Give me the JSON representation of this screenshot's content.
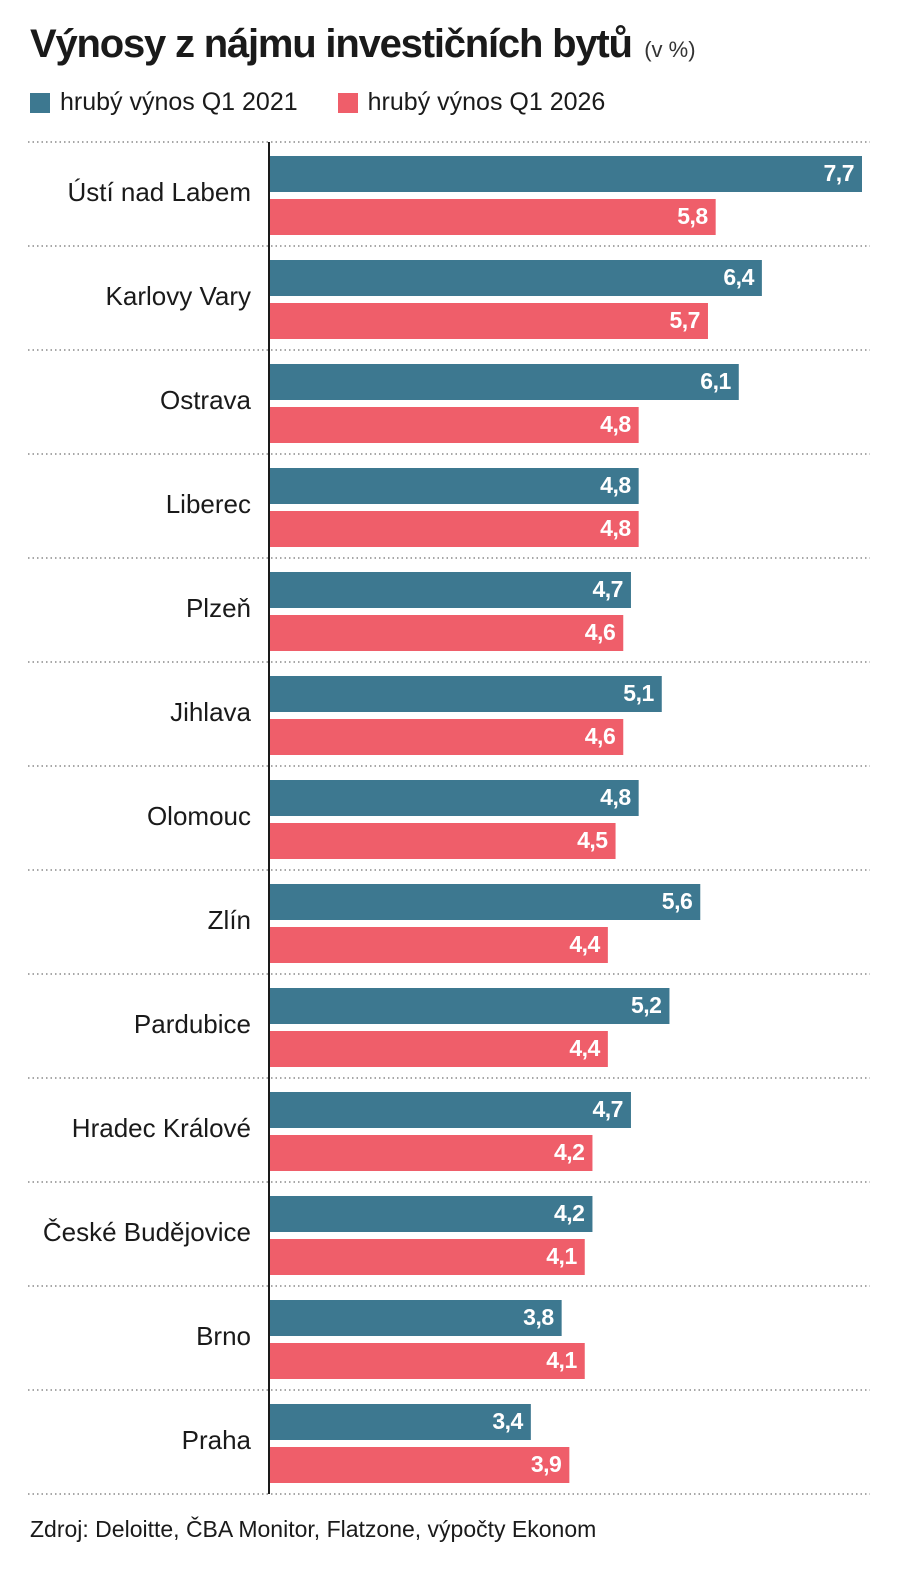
{
  "header": {
    "title": "Výnosy z nájmu investičních bytů",
    "unit": "(v %)"
  },
  "legend": {
    "items": [
      {
        "label": "hrubý výnos Q1 2021",
        "color": "#3d7890"
      },
      {
        "label": "hrubý výnos Q1 2026",
        "color": "#ef5e6a"
      }
    ]
  },
  "chart_data": {
    "type": "bar",
    "orientation": "horizontal",
    "categories": [
      "Ústí nad Labem",
      "Karlovy Vary",
      "Ostrava",
      "Liberec",
      "Plzeň",
      "Jihlava",
      "Olomouc",
      "Zlín",
      "Pardubice",
      "Hradec Králové",
      "České Budějovice",
      "Brno",
      "Praha"
    ],
    "series": [
      {
        "name": "hrubý výnos Q1 2021",
        "color": "#3d7890",
        "values": [
          7.7,
          6.4,
          6.1,
          4.8,
          4.7,
          5.1,
          4.8,
          5.6,
          5.2,
          4.7,
          4.2,
          3.8,
          3.4
        ],
        "labels": [
          "7,7",
          "6,4",
          "6,1",
          "4,8",
          "4,7",
          "5,1",
          "4,8",
          "5,6",
          "5,2",
          "4,7",
          "4,2",
          "3,8",
          "3,4"
        ]
      },
      {
        "name": "hrubý výnos Q1 2026",
        "color": "#ef5e6a",
        "values": [
          5.8,
          5.7,
          4.8,
          4.8,
          4.6,
          4.6,
          4.5,
          4.4,
          4.4,
          4.2,
          4.1,
          4.1,
          3.9
        ],
        "labels": [
          "5,8",
          "5,7",
          "4,8",
          "4,8",
          "4,6",
          "4,6",
          "4,5",
          "4,4",
          "4,4",
          "4,2",
          "4,1",
          "4,1",
          "3,9"
        ]
      }
    ],
    "xlim": [
      0,
      7.7
    ],
    "grid": false,
    "legend_position": "top-left"
  },
  "footer": {
    "source": "Zdroj: Deloitte, ČBA Monitor, Flatzone, výpočty Ekonom"
  }
}
